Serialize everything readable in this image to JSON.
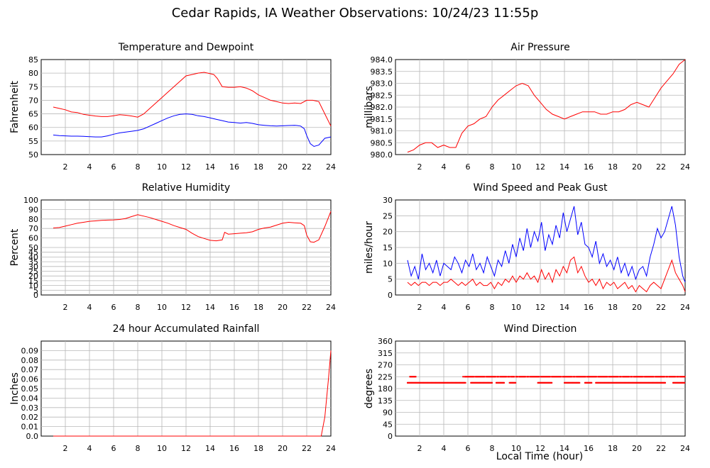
{
  "page": {
    "title": "Cedar Rapids, IA Weather Observations: 10/24/23 11:55p",
    "xlabel": "Local Time (hour)"
  },
  "chart_data": [
    {
      "id": "temp",
      "type": "line",
      "title": "Temperature and Dewpoint",
      "xlabel": "",
      "ylabel": "Fahrenheit",
      "xlim": [
        0,
        24
      ],
      "ylim": [
        50,
        85
      ],
      "xticks": [
        2,
        4,
        6,
        8,
        10,
        12,
        14,
        16,
        18,
        20,
        22,
        24
      ],
      "yticks": [
        50,
        55,
        60,
        65,
        70,
        75,
        80,
        85
      ],
      "ytick_labels": [
        "50",
        "55",
        "60",
        "65",
        "70",
        "75",
        "80",
        "85"
      ],
      "grid": true,
      "series": [
        {
          "color": "#ff0000",
          "x": [
            1,
            1.5,
            2,
            2.5,
            3,
            3.5,
            4,
            4.5,
            5,
            5.5,
            6,
            6.5,
            7,
            7.5,
            8,
            8.5,
            9,
            9.5,
            10,
            10.5,
            11,
            11.5,
            12,
            12.5,
            13,
            13.5,
            14,
            14.3,
            14.6,
            15,
            15.5,
            16,
            16.5,
            17,
            17.5,
            18,
            18.5,
            19,
            19.5,
            20,
            20.5,
            21,
            21.5,
            22,
            22.5,
            23,
            23.5,
            24
          ],
          "values": [
            67.5,
            67,
            66.5,
            65.7,
            65.5,
            64.8,
            64.5,
            64.2,
            64,
            64,
            64.3,
            64.7,
            64.5,
            64.2,
            63.8,
            65,
            67,
            69,
            71,
            73,
            75,
            77,
            79,
            79.5,
            80,
            80.3,
            79.8,
            79.5,
            78,
            75,
            74.8,
            74.8,
            75,
            74.5,
            73.5,
            72,
            71,
            70,
            69.5,
            69,
            68.8,
            69,
            68.8,
            70,
            70,
            69.5,
            65,
            60.5
          ]
        },
        {
          "color": "#0000ff",
          "x": [
            1,
            1.5,
            2,
            2.5,
            3,
            3.5,
            4,
            4.5,
            5,
            5.5,
            6,
            6.5,
            7,
            7.5,
            8,
            8.5,
            9,
            9.5,
            10,
            10.5,
            11,
            11.5,
            12,
            12.5,
            13,
            13.5,
            14,
            14.5,
            15,
            15.5,
            16,
            16.5,
            17,
            17.5,
            18,
            18.5,
            19,
            19.5,
            20,
            20.5,
            21,
            21.2,
            21.5,
            21.8,
            22,
            22.3,
            22.6,
            23,
            23.5,
            24
          ],
          "values": [
            57.2,
            57,
            56.9,
            56.8,
            56.8,
            56.7,
            56.6,
            56.5,
            56.5,
            56.9,
            57.5,
            58,
            58.3,
            58.6,
            58.9,
            59.5,
            60.5,
            61.5,
            62.5,
            63.5,
            64.3,
            64.8,
            65,
            64.8,
            64.3,
            64,
            63.5,
            63,
            62.5,
            62,
            61.8,
            61.6,
            61.8,
            61.5,
            61,
            60.8,
            60.6,
            60.5,
            60.6,
            60.7,
            60.8,
            60.7,
            60.5,
            59.5,
            57,
            54,
            53,
            53.5,
            56,
            56.5
          ]
        }
      ]
    },
    {
      "id": "pressure",
      "type": "line",
      "title": "Air Pressure",
      "xlabel": "",
      "ylabel": "millibars",
      "xlim": [
        0,
        24
      ],
      "ylim": [
        980.0,
        984.0
      ],
      "xticks": [
        2,
        4,
        6,
        8,
        10,
        12,
        14,
        16,
        18,
        20,
        22,
        24
      ],
      "yticks": [
        980,
        980.5,
        981,
        981.5,
        982,
        982.5,
        983,
        983.5,
        984
      ],
      "ytick_labels": [
        "980.0",
        "980.5",
        "981.0",
        "981.5",
        "982.0",
        "982.5",
        "983.0",
        "983.5",
        "984.0"
      ],
      "grid": true,
      "series": [
        {
          "color": "#ff0000",
          "x": [
            1,
            1.5,
            2,
            2.5,
            3,
            3.5,
            4,
            4.5,
            5,
            5.5,
            6,
            6.5,
            7,
            7.5,
            8,
            8.5,
            9,
            9.5,
            10,
            10.5,
            11,
            11.5,
            12,
            12.5,
            13,
            13.5,
            14,
            14.5,
            15,
            15.5,
            16,
            16.5,
            17,
            17.5,
            18,
            18.5,
            19,
            19.5,
            20,
            20.5,
            21,
            21.5,
            22,
            22.5,
            23,
            23.5,
            24
          ],
          "values": [
            980.1,
            980.2,
            980.4,
            980.5,
            980.5,
            980.3,
            980.4,
            980.3,
            980.3,
            980.9,
            981.2,
            981.3,
            981.5,
            981.6,
            982,
            982.3,
            982.5,
            982.7,
            982.9,
            983,
            982.9,
            982.5,
            982.2,
            981.9,
            981.7,
            981.6,
            981.5,
            981.6,
            981.7,
            981.8,
            981.8,
            981.8,
            981.7,
            981.7,
            981.8,
            981.8,
            981.9,
            982.1,
            982.2,
            982.1,
            982,
            982.4,
            982.8,
            983.1,
            983.4,
            983.8,
            984
          ]
        }
      ]
    },
    {
      "id": "rh",
      "type": "line",
      "title": "Relative Humidity",
      "xlabel": "",
      "ylabel": "Percent",
      "xlim": [
        0,
        24
      ],
      "ylim": [
        0,
        100
      ],
      "xticks": [
        2,
        4,
        6,
        8,
        10,
        12,
        14,
        16,
        18,
        20,
        22,
        24
      ],
      "yticks": [
        0,
        5,
        10,
        15,
        20,
        25,
        30,
        35,
        40,
        45,
        50,
        60,
        70,
        80,
        90,
        100
      ],
      "ytick_labels": [
        "0",
        "5",
        "10",
        "15",
        "20",
        "25",
        "30",
        "35",
        "40",
        "45",
        "50",
        "60",
        "70",
        "80",
        "90",
        "100"
      ],
      "grid": true,
      "series": [
        {
          "color": "#ff0000",
          "x": [
            1,
            1.5,
            2,
            2.5,
            3,
            3.5,
            4,
            4.5,
            5,
            5.5,
            6,
            6.5,
            7,
            7.5,
            8,
            8.5,
            9,
            9.5,
            10,
            10.5,
            11,
            11.5,
            12,
            12.5,
            13,
            13.5,
            14,
            14.5,
            15,
            15.2,
            15.5,
            16,
            16.5,
            17,
            17.5,
            18,
            18.5,
            19,
            19.5,
            20,
            20.5,
            21,
            21.5,
            21.8,
            22,
            22.3,
            22.6,
            23,
            23.5,
            24
          ],
          "values": [
            70.5,
            71,
            72.5,
            74,
            75.5,
            76.5,
            77.5,
            78,
            78.5,
            78.8,
            79,
            79.5,
            80.5,
            82.5,
            84.5,
            83,
            81.5,
            79.5,
            77.5,
            75.5,
            73,
            71,
            69,
            65,
            61.5,
            59.5,
            57.5,
            57,
            58,
            66,
            64,
            64.5,
            65,
            65.5,
            66.5,
            69,
            70.5,
            71.5,
            73.5,
            75.5,
            76.5,
            76,
            75.5,
            73,
            63,
            56,
            55.5,
            58,
            72,
            88
          ]
        }
      ]
    },
    {
      "id": "wind",
      "type": "line",
      "title": "Wind Speed and Peak Gust",
      "xlabel": "",
      "ylabel": "miles/hour",
      "xlim": [
        0,
        24
      ],
      "ylim": [
        0,
        30
      ],
      "xticks": [
        2,
        4,
        6,
        8,
        10,
        12,
        14,
        16,
        18,
        20,
        22,
        24
      ],
      "yticks": [
        0,
        5,
        10,
        15,
        20,
        25,
        30
      ],
      "ytick_labels": [
        "0",
        "5",
        "10",
        "15",
        "20",
        "25",
        "30"
      ],
      "grid": true,
      "series": [
        {
          "color": "#0000ff",
          "x": [
            1,
            1.3,
            1.6,
            1.9,
            2.2,
            2.5,
            2.8,
            3.1,
            3.4,
            3.7,
            4,
            4.3,
            4.6,
            4.9,
            5.2,
            5.5,
            5.8,
            6.1,
            6.4,
            6.7,
            7,
            7.3,
            7.6,
            7.9,
            8.2,
            8.5,
            8.8,
            9.1,
            9.4,
            9.7,
            10,
            10.3,
            10.6,
            10.9,
            11.2,
            11.5,
            11.8,
            12.1,
            12.4,
            12.7,
            13,
            13.3,
            13.6,
            13.9,
            14.2,
            14.5,
            14.8,
            15.1,
            15.4,
            15.7,
            16,
            16.3,
            16.6,
            16.9,
            17.2,
            17.5,
            17.8,
            18.1,
            18.4,
            18.7,
            19,
            19.3,
            19.6,
            19.9,
            20.2,
            20.5,
            20.8,
            21.1,
            21.4,
            21.7,
            22,
            22.3,
            22.6,
            22.9,
            23.2,
            23.5,
            23.8,
            24
          ],
          "values": [
            11,
            6,
            9,
            5,
            13,
            8,
            10,
            7,
            11,
            6,
            10,
            9,
            8,
            12,
            10,
            7,
            11,
            9,
            13,
            8,
            10,
            7,
            12,
            9,
            6,
            11,
            9,
            14,
            10,
            16,
            12,
            18,
            14,
            21,
            15,
            20,
            17,
            23,
            14,
            19,
            16,
            22,
            18,
            26,
            20,
            24,
            28,
            19,
            23,
            16,
            15,
            12,
            17,
            10,
            13,
            9,
            11,
            8,
            12,
            7,
            10,
            6,
            9,
            5,
            8,
            9,
            6,
            12,
            16,
            21,
            18,
            20,
            24,
            28,
            22,
            12,
            6,
            4
          ]
        },
        {
          "color": "#ff0000",
          "x": [
            1,
            1.3,
            1.6,
            1.9,
            2.2,
            2.5,
            2.8,
            3.1,
            3.4,
            3.7,
            4,
            4.3,
            4.6,
            4.9,
            5.2,
            5.5,
            5.8,
            6.1,
            6.4,
            6.7,
            7,
            7.3,
            7.6,
            7.9,
            8.2,
            8.5,
            8.8,
            9.1,
            9.4,
            9.7,
            10,
            10.3,
            10.6,
            10.9,
            11.2,
            11.5,
            11.8,
            12.1,
            12.4,
            12.7,
            13,
            13.3,
            13.6,
            13.9,
            14.2,
            14.5,
            14.8,
            15.1,
            15.4,
            15.7,
            16,
            16.3,
            16.6,
            16.9,
            17.2,
            17.5,
            17.8,
            18.1,
            18.4,
            18.7,
            19,
            19.3,
            19.6,
            19.9,
            20.2,
            20.5,
            20.8,
            21.1,
            21.4,
            21.7,
            22,
            22.3,
            22.6,
            22.9,
            23.2,
            23.5,
            23.8,
            24
          ],
          "values": [
            4,
            3,
            4,
            3,
            4,
            4,
            3,
            4,
            4,
            3,
            4,
            4,
            5,
            4,
            3,
            4,
            3,
            4,
            5,
            3,
            4,
            3,
            3,
            4,
            2,
            4,
            3,
            5,
            4,
            6,
            4,
            6,
            5,
            7,
            5,
            6,
            4,
            8,
            5,
            7,
            4,
            8,
            6,
            9,
            7,
            11,
            12,
            7,
            9,
            6,
            4,
            5,
            3,
            5,
            2,
            4,
            3,
            4,
            2,
            3,
            4,
            2,
            3,
            1,
            3,
            2,
            1,
            3,
            4,
            3,
            2,
            5,
            8,
            11,
            7,
            5,
            3,
            1
          ]
        }
      ]
    },
    {
      "id": "rain",
      "type": "line",
      "title": "24 hour Accumulated Rainfall",
      "xlabel": "",
      "ylabel": "Inches",
      "xlim": [
        0,
        24
      ],
      "ylim": [
        0,
        0.1
      ],
      "xticks": [
        2,
        4,
        6,
        8,
        10,
        12,
        14,
        16,
        18,
        20,
        22,
        24
      ],
      "yticks": [
        0,
        0.01,
        0.02,
        0.03,
        0.04,
        0.05,
        0.06,
        0.07,
        0.08,
        0.09
      ],
      "ytick_labels": [
        "0.0",
        "0.01",
        "0.02",
        "0.03",
        "0.04",
        "0.05",
        "0.06",
        "0.07",
        "0.08",
        "0.09"
      ],
      "grid": true,
      "series": [
        {
          "color": "#ff0000",
          "x": [
            1,
            23.2,
            23.5,
            23.8,
            24
          ],
          "values": [
            0,
            0,
            0.02,
            0.06,
            0.09
          ]
        }
      ]
    },
    {
      "id": "winddir",
      "type": "scatter",
      "title": "Wind Direction",
      "xlabel": "Local Time (hour)",
      "ylabel": "degrees",
      "xlim": [
        0,
        24
      ],
      "ylim": [
        0,
        360
      ],
      "xticks": [
        2,
        4,
        6,
        8,
        10,
        12,
        14,
        16,
        18,
        20,
        22,
        24
      ],
      "yticks": [
        0,
        45,
        90,
        135,
        180,
        225,
        270,
        315,
        360
      ],
      "ytick_labels": [
        "0",
        "45",
        "90",
        "135",
        "180",
        "225",
        "270",
        "315",
        "360"
      ],
      "grid": true,
      "series": [
        {
          "color": "#ff0000",
          "x_range_low": [
            1,
            24
          ],
          "value_low": 202,
          "gaps_low": [
            [
              5.8,
              6.2
            ],
            [
              8.0,
              8.3
            ],
            [
              9.0,
              9.4
            ],
            [
              10.0,
              11.8
            ],
            [
              13.0,
              14.0
            ],
            [
              15.3,
              15.7
            ],
            [
              16.3,
              16.6
            ],
            [
              22.4,
              23.0
            ]
          ],
          "segments_high": [
            [
              1.2,
              1.7
            ],
            [
              5.6,
              9.9
            ],
            [
              10.0,
              24
            ]
          ],
          "value_high": 225
        }
      ]
    }
  ]
}
